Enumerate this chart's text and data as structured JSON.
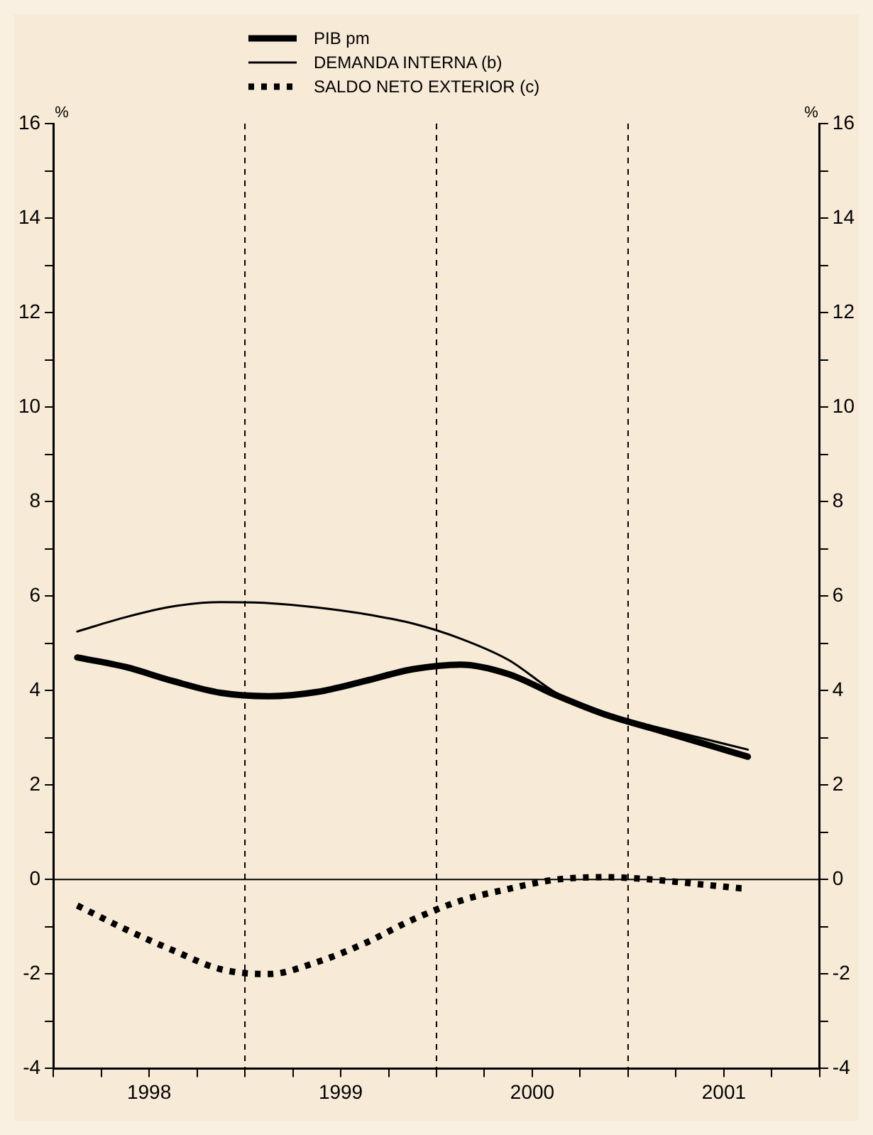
{
  "chart_data": {
    "type": "line",
    "ylabel": "%",
    "y2label": "%",
    "legend": "top",
    "x": [
      1998.125,
      1998.375,
      1998.625,
      1998.875,
      1999.125,
      1999.375,
      1999.625,
      1999.875,
      2000.125,
      2000.375,
      2000.625,
      2000.875,
      2001.125,
      2001.375,
      2001.625
    ],
    "series": [
      {
        "name": "PIB pm",
        "color": "#000000",
        "line_style": "solid",
        "values": [
          4.7,
          4.5,
          4.2,
          3.95,
          3.88,
          3.97,
          4.2,
          4.45,
          4.55,
          4.35,
          3.9,
          3.5,
          3.2,
          2.9,
          2.6
        ]
      },
      {
        "name": "DEMANDA INTERNA (b)",
        "color": "#000000",
        "line_style": "solid",
        "values": [
          5.25,
          5.55,
          5.78,
          5.87,
          5.85,
          5.76,
          5.62,
          5.42,
          5.1,
          4.65,
          3.95,
          3.5,
          3.25,
          3.0,
          2.75
        ]
      },
      {
        "name": "SALDO NETO EXTERIOR (c)",
        "color": "#000000",
        "line_style": "dotted",
        "values": [
          -0.55,
          -1.05,
          -1.5,
          -1.9,
          -2.0,
          -1.75,
          -1.35,
          -0.85,
          -0.45,
          -0.2,
          0.0,
          0.05,
          0.0,
          -0.1,
          -0.2
        ]
      }
    ],
    "xlim": [
      1998,
      2002
    ],
    "xticks": [
      {
        "value": 1998,
        "label": null
      },
      {
        "value": 1998.25,
        "label": null
      },
      {
        "value": 1998.5,
        "label": "1998"
      },
      {
        "value": 1998.75,
        "label": null
      },
      {
        "value": 1999,
        "label": null
      },
      {
        "value": 1999.25,
        "label": null
      },
      {
        "value": 1999.5,
        "label": "1999"
      },
      {
        "value": 1999.75,
        "label": null
      },
      {
        "value": 2000,
        "label": null
      },
      {
        "value": 2000.25,
        "label": null
      },
      {
        "value": 2000.5,
        "label": "2000"
      },
      {
        "value": 2000.75,
        "label": null
      },
      {
        "value": 2001,
        "label": null
      },
      {
        "value": 2001.25,
        "label": null
      },
      {
        "value": 2001.5,
        "label": "2001"
      },
      {
        "value": 2001.75,
        "label": null
      },
      {
        "value": 2002,
        "label": null
      }
    ],
    "ylim": [
      -4,
      16
    ],
    "yticks": [
      -4,
      {
        "value": -3,
        "label": null
      },
      -2,
      {
        "value": -1,
        "label": null
      },
      0,
      {
        "value": 1,
        "label": null
      },
      2,
      {
        "value": 3,
        "label": null
      },
      4,
      {
        "value": 5,
        "label": null
      },
      6,
      {
        "value": 7,
        "label": null
      },
      8,
      {
        "value": 9,
        "label": null
      },
      10,
      {
        "value": 11,
        "label": null
      },
      12,
      {
        "value": 13,
        "label": null
      },
      14,
      {
        "value": 15,
        "label": null
      },
      16
    ],
    "y2lim": [
      -4,
      16
    ],
    "y2ticks": [
      -4,
      {
        "value": -3,
        "label": null
      },
      -2,
      {
        "value": -1,
        "label": null
      },
      0,
      {
        "value": 1,
        "label": null
      },
      2,
      {
        "value": 3,
        "label": null
      },
      4,
      {
        "value": 5,
        "label": null
      },
      6,
      {
        "value": 7,
        "label": null
      },
      8,
      {
        "value": 9,
        "label": null
      },
      10,
      {
        "value": 11,
        "label": null
      },
      12,
      {
        "value": 13,
        "label": null
      },
      14,
      {
        "value": 15,
        "label": null
      },
      16
    ],
    "ref_lines": [
      {
        "axis": "y",
        "value": 0,
        "color": "#000000",
        "line_style": "solid"
      },
      {
        "axis": "x",
        "value": 1999,
        "color": "#000000",
        "line_style": "dashed"
      },
      {
        "axis": "x",
        "value": 2000,
        "color": "#000000",
        "line_style": "dashed"
      },
      {
        "axis": "x",
        "value": 2001,
        "color": "#000000",
        "line_style": "dashed"
      }
    ],
    "grid": false
  }
}
